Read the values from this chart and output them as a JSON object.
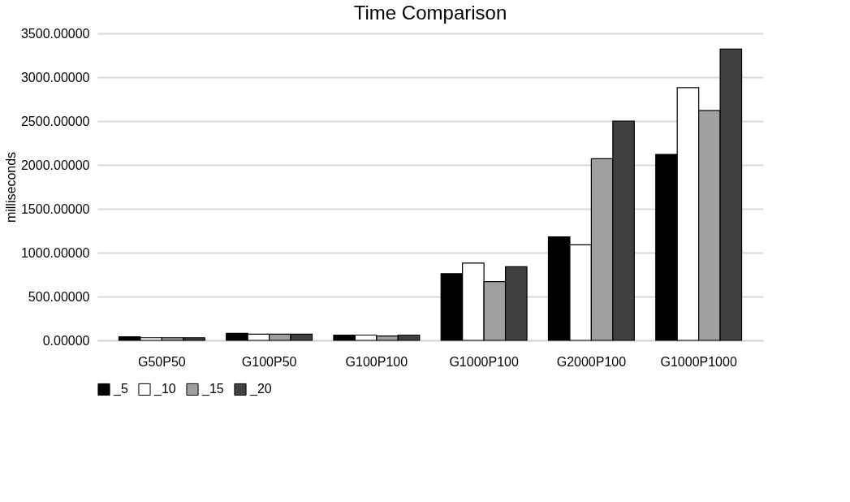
{
  "chart_data": {
    "type": "bar",
    "title": "Time Comparison",
    "ylabel": "milliseconds",
    "categories": [
      "G50P50",
      "G100P50",
      "G100P100",
      "G1000P100",
      "G2000P100",
      "G1000P1000"
    ],
    "series": [
      {
        "name": "_5",
        "color": "#000000",
        "values": [
          40,
          80,
          60,
          760,
          1180,
          2120
        ]
      },
      {
        "name": "_10",
        "color": "#ffffff",
        "values": [
          30,
          70,
          60,
          880,
          1090,
          2880
        ]
      },
      {
        "name": "_15",
        "color": "#a0a0a0",
        "values": [
          30,
          70,
          50,
          670,
          2070,
          2620
        ]
      },
      {
        "name": "_20",
        "color": "#404040",
        "values": [
          30,
          70,
          60,
          840,
          2500,
          3320
        ]
      }
    ],
    "ylim": [
      0,
      3500
    ],
    "yticks": [
      {
        "value": 0,
        "label": "0.00000"
      },
      {
        "value": 500,
        "label": "500.00000"
      },
      {
        "value": 1000,
        "label": "1000.00000"
      },
      {
        "value": 1500,
        "label": "1500.00000"
      },
      {
        "value": 2000,
        "label": "2000.00000"
      },
      {
        "value": 2500,
        "label": "2500.00000"
      },
      {
        "value": 3000,
        "label": "3000.00000"
      },
      {
        "value": 3500,
        "label": "3500.00000"
      }
    ],
    "grid": "y",
    "legend": "bottom"
  }
}
